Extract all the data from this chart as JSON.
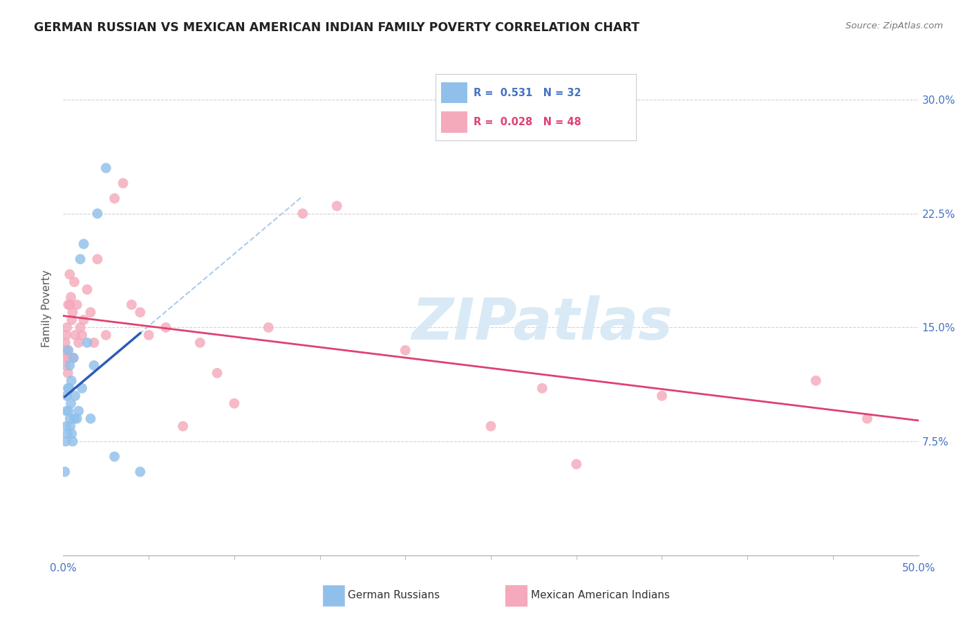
{
  "title": "GERMAN RUSSIAN VS MEXICAN AMERICAN INDIAN FAMILY POVERTY CORRELATION CHART",
  "source": "Source: ZipAtlas.com",
  "ylabel": "Family Poverty",
  "xlim": [
    0.0,
    50.0
  ],
  "ylim": [
    0.0,
    32.5
  ],
  "r_blue": "0.531",
  "n_blue": "32",
  "r_pink": "0.028",
  "n_pink": "48",
  "watermark": "ZIPatlas",
  "blue_scatter_color": "#90C0EA",
  "pink_scatter_color": "#F5AABB",
  "blue_line_color": "#2B5CB8",
  "pink_line_color": "#E04070",
  "dashed_line_color": "#AACCEE",
  "axis_tick_color": "#4472C4",
  "legend_blue_label": "German Russians",
  "legend_pink_label": "Mexican American Indians",
  "ytick_values": [
    7.5,
    15.0,
    22.5,
    30.0
  ],
  "german_russian_x": [
    0.1,
    0.15,
    0.18,
    0.2,
    0.22,
    0.25,
    0.28,
    0.3,
    0.32,
    0.35,
    0.38,
    0.4,
    0.42,
    0.45,
    0.48,
    0.5,
    0.55,
    0.6,
    0.65,
    0.7,
    0.8,
    0.9,
    1.0,
    1.1,
    1.2,
    1.4,
    1.6,
    1.8,
    2.0,
    2.5,
    3.0,
    4.5
  ],
  "german_russian_y": [
    5.5,
    7.5,
    8.5,
    9.5,
    10.5,
    8.0,
    11.0,
    13.5,
    9.5,
    11.0,
    12.5,
    9.0,
    8.5,
    10.0,
    11.5,
    8.0,
    7.5,
    13.0,
    9.0,
    10.5,
    9.0,
    9.5,
    19.5,
    11.0,
    20.5,
    14.0,
    9.0,
    12.5,
    22.5,
    25.5,
    6.5,
    5.5
  ],
  "mexican_american_indian_x": [
    0.1,
    0.12,
    0.15,
    0.18,
    0.2,
    0.22,
    0.25,
    0.28,
    0.3,
    0.35,
    0.38,
    0.4,
    0.45,
    0.5,
    0.55,
    0.6,
    0.65,
    0.7,
    0.8,
    0.9,
    1.0,
    1.1,
    1.2,
    1.4,
    1.6,
    1.8,
    2.0,
    2.5,
    3.0,
    3.5,
    4.0,
    4.5,
    5.0,
    6.0,
    7.0,
    8.0,
    9.0,
    10.0,
    12.0,
    14.0,
    16.0,
    20.0,
    25.0,
    28.0,
    30.0,
    35.0,
    44.0,
    47.0
  ],
  "mexican_american_indian_y": [
    13.5,
    14.0,
    12.5,
    14.5,
    13.0,
    15.0,
    13.5,
    12.0,
    16.5,
    13.0,
    18.5,
    16.5,
    17.0,
    15.5,
    16.0,
    13.0,
    18.0,
    14.5,
    16.5,
    14.0,
    15.0,
    14.5,
    15.5,
    17.5,
    16.0,
    14.0,
    19.5,
    14.5,
    23.5,
    24.5,
    16.5,
    16.0,
    14.5,
    15.0,
    8.5,
    14.0,
    12.0,
    10.0,
    15.0,
    22.5,
    23.0,
    13.5,
    8.5,
    11.0,
    6.0,
    10.5,
    11.5,
    9.0
  ]
}
